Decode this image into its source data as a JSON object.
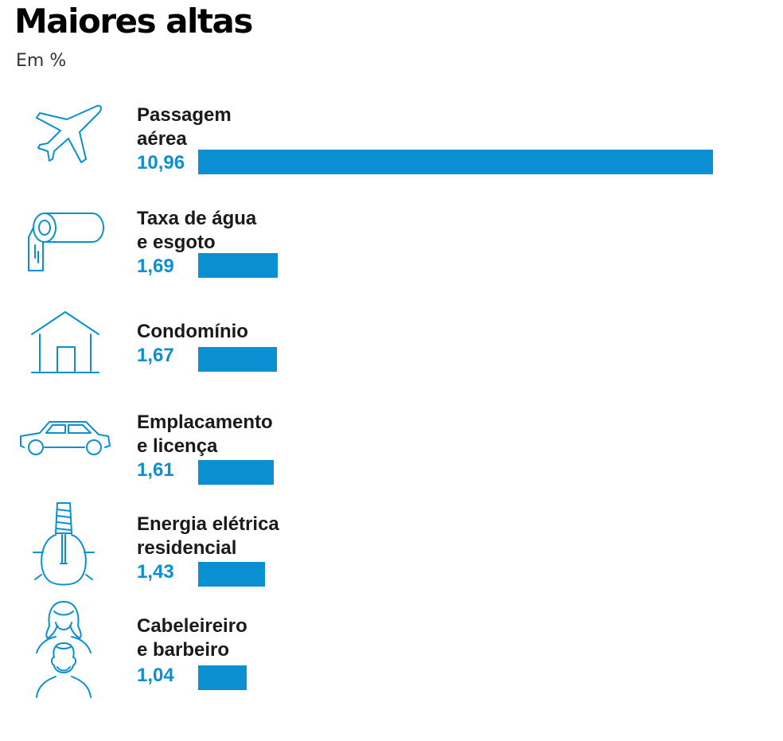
{
  "header": {
    "title": "Maiores altas",
    "subtitle": "Em %"
  },
  "colors": {
    "bar": "#0b8fd3",
    "icon": "#0b8fd3"
  },
  "chart_data": {
    "type": "bar",
    "orientation": "horizontal",
    "title": "Maiores altas",
    "subtitle": "Em %",
    "categories": [
      "Passagem aérea",
      "Taxa de água e esgoto",
      "Condomínio",
      "Emplacamento e licença",
      "Energia elétrica residencial",
      "Cabeleireiro e barbeiro"
    ],
    "values": [
      10.96,
      1.69,
      1.67,
      1.61,
      1.43,
      1.04
    ],
    "xlim": [
      0,
      10.96
    ],
    "items": [
      {
        "icon": "airplane-icon",
        "label_lines": [
          "Passagem",
          "aérea"
        ],
        "value_label": "10,96",
        "value": 10.96
      },
      {
        "icon": "water-pipe-icon",
        "label_lines": [
          "Taxa de água",
          "e esgoto"
        ],
        "value_label": "1,69",
        "value": 1.69
      },
      {
        "icon": "house-icon",
        "label_lines": [
          "Condomínio"
        ],
        "value_label": "1,67",
        "value": 1.67
      },
      {
        "icon": "car-icon",
        "label_lines": [
          "Emplacamento",
          "e licença"
        ],
        "value_label": "1,61",
        "value": 1.61
      },
      {
        "icon": "lightbulb-icon",
        "label_lines": [
          "Energia elétrica",
          "residencial"
        ],
        "value_label": "1,43",
        "value": 1.43
      },
      {
        "icon": "hairdresser-icon",
        "label_lines": [
          "Cabeleireiro",
          "e barbeiro"
        ],
        "value_label": "1,04",
        "value": 1.04
      }
    ]
  }
}
